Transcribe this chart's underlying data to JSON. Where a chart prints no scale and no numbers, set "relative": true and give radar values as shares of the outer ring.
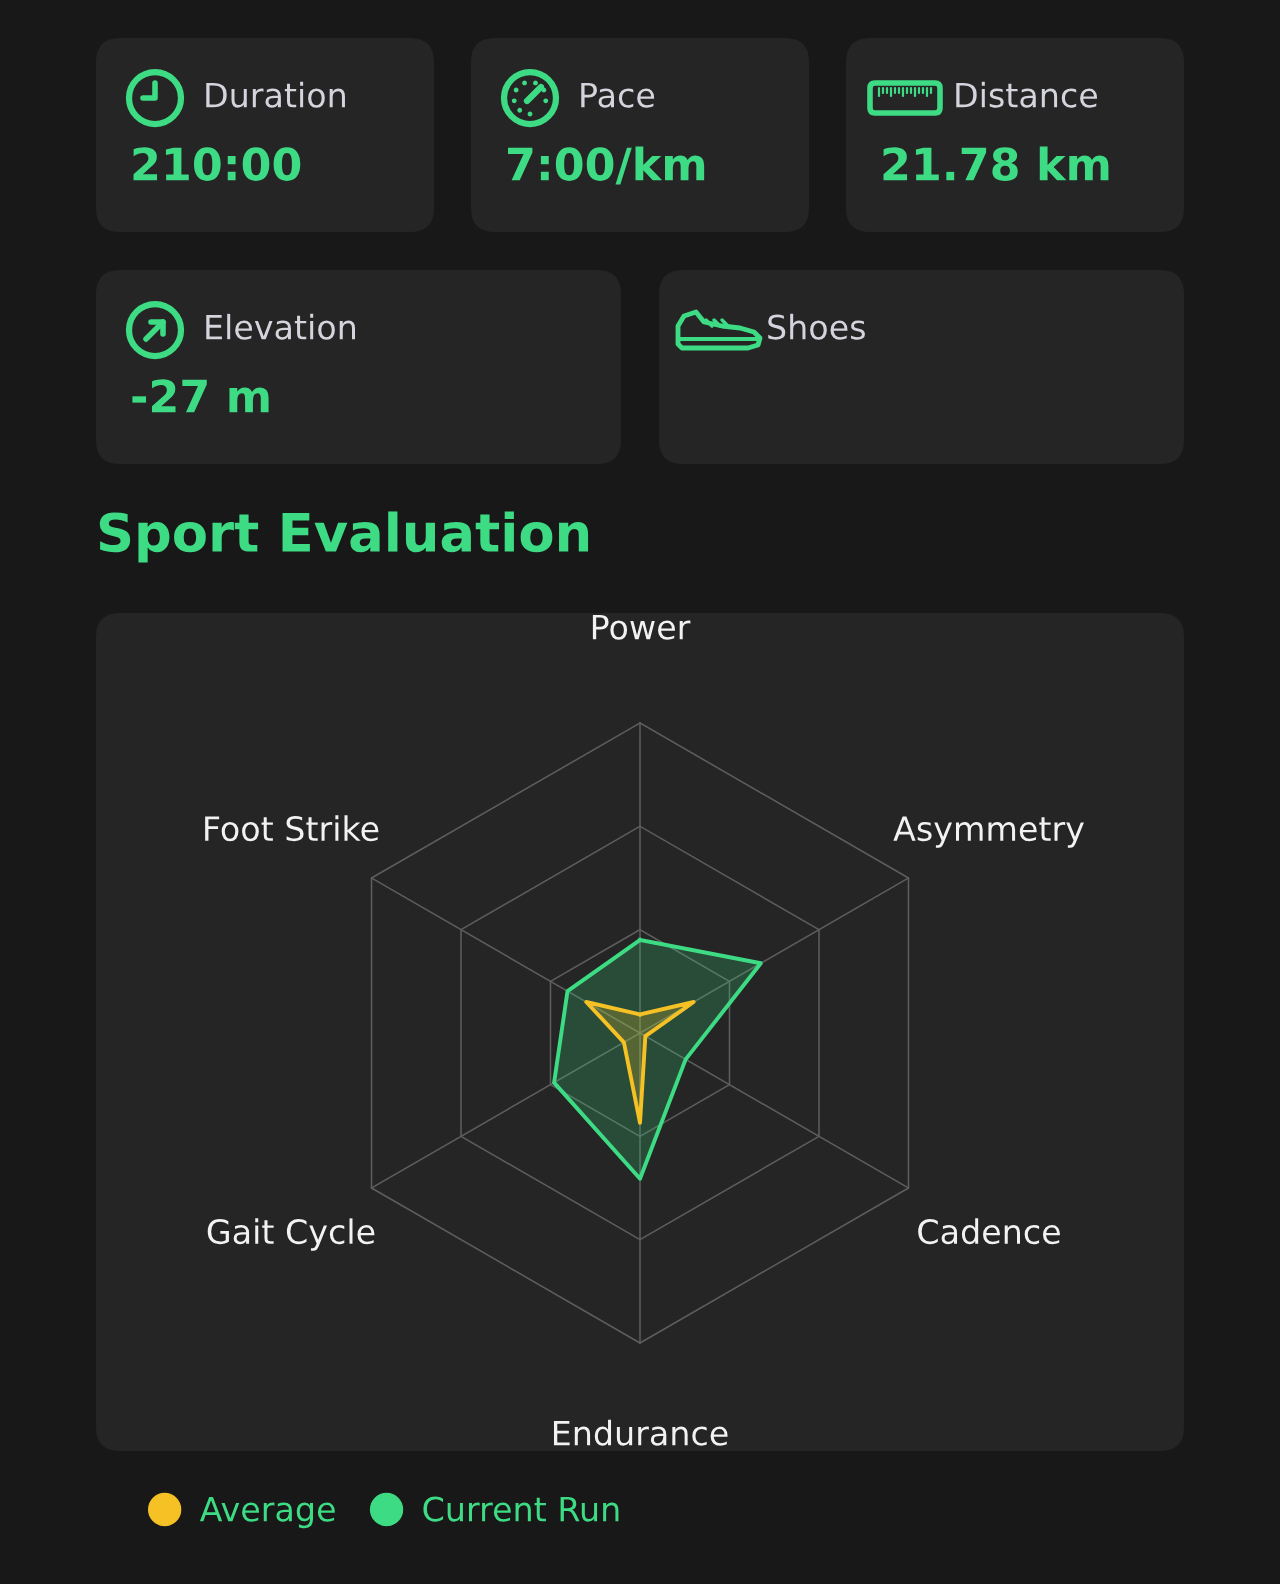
{
  "chart_data": [
    {
      "type": "other",
      "annotations": [
        "Duration",
        "210:00",
        "Pace",
        "7:00/km",
        "Distance",
        "21.78 km",
        "Elevation",
        "-27 m",
        "Shoes"
      ]
    },
    {
      "type": "radar",
      "title": "Sport Evaluation",
      "categories": [
        "Power",
        "Asymmetry",
        "Cadence",
        "Endurance",
        "Gait Cycle",
        "Foot Strike"
      ],
      "relative": true,
      "grid": true,
      "legend": "bottom left",
      "series": [
        {
          "name": "Average",
          "color": "#f5c125",
          "values": [
            0.06,
            0.2,
            0.02,
            0.29,
            0.06,
            0.2
          ]
        },
        {
          "name": "Current Run",
          "color": "#3ddc84",
          "values": [
            0.3,
            0.45,
            0.17,
            0.47,
            0.32,
            0.27
          ]
        }
      ]
    }
  ]
}
